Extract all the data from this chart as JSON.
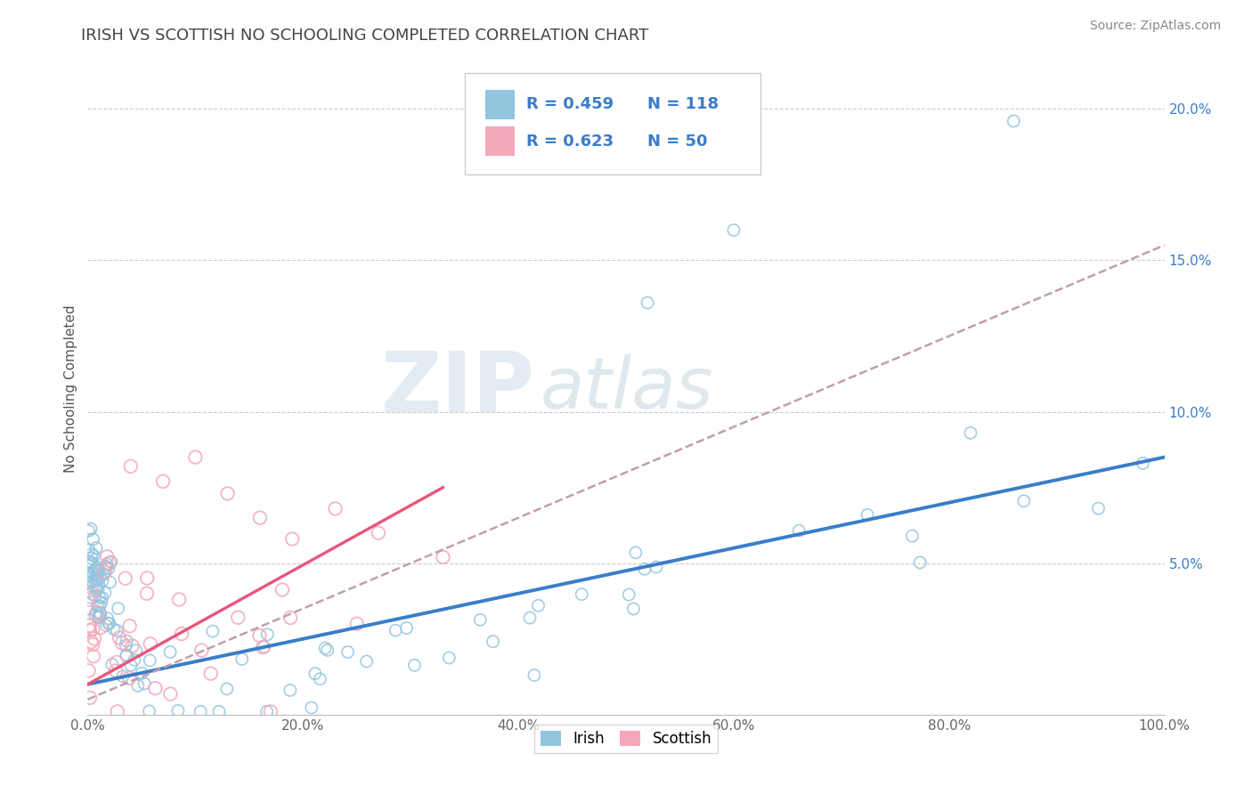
{
  "title": "IRISH VS SCOTTISH NO SCHOOLING COMPLETED CORRELATION CHART",
  "source": "Source: ZipAtlas.com",
  "ylabel_label": "No Schooling Completed",
  "watermark_zip": "ZIP",
  "watermark_atlas": "atlas",
  "irish_R": 0.459,
  "irish_N": 118,
  "scottish_R": 0.623,
  "scottish_N": 50,
  "irish_color": "#92c5de",
  "scottish_color": "#f4a7b9",
  "irish_line_color": "#3a7dc9",
  "scottish_line_solid_color": "#e8567a",
  "scottish_line_dashed_color": "#c0a0a8",
  "background_color": "#ffffff",
  "grid_color": "#c8c8c8",
  "title_color": "#444444",
  "legend_title_color": "#3a7dc9",
  "xlim": [
    0.0,
    1.0
  ],
  "ylim": [
    0.0,
    0.215
  ],
  "x_ticks": [
    0.0,
    0.2,
    0.4,
    0.6,
    0.8,
    1.0
  ],
  "y_ticks": [
    0.05,
    0.1,
    0.15,
    0.2
  ],
  "x_tick_labels": [
    "0.0%",
    "20.0%",
    "40.0%",
    "60.0%",
    "80.0%",
    "100.0%"
  ],
  "y_tick_labels": [
    "5.0%",
    "10.0%",
    "15.0%",
    "20.0%"
  ]
}
